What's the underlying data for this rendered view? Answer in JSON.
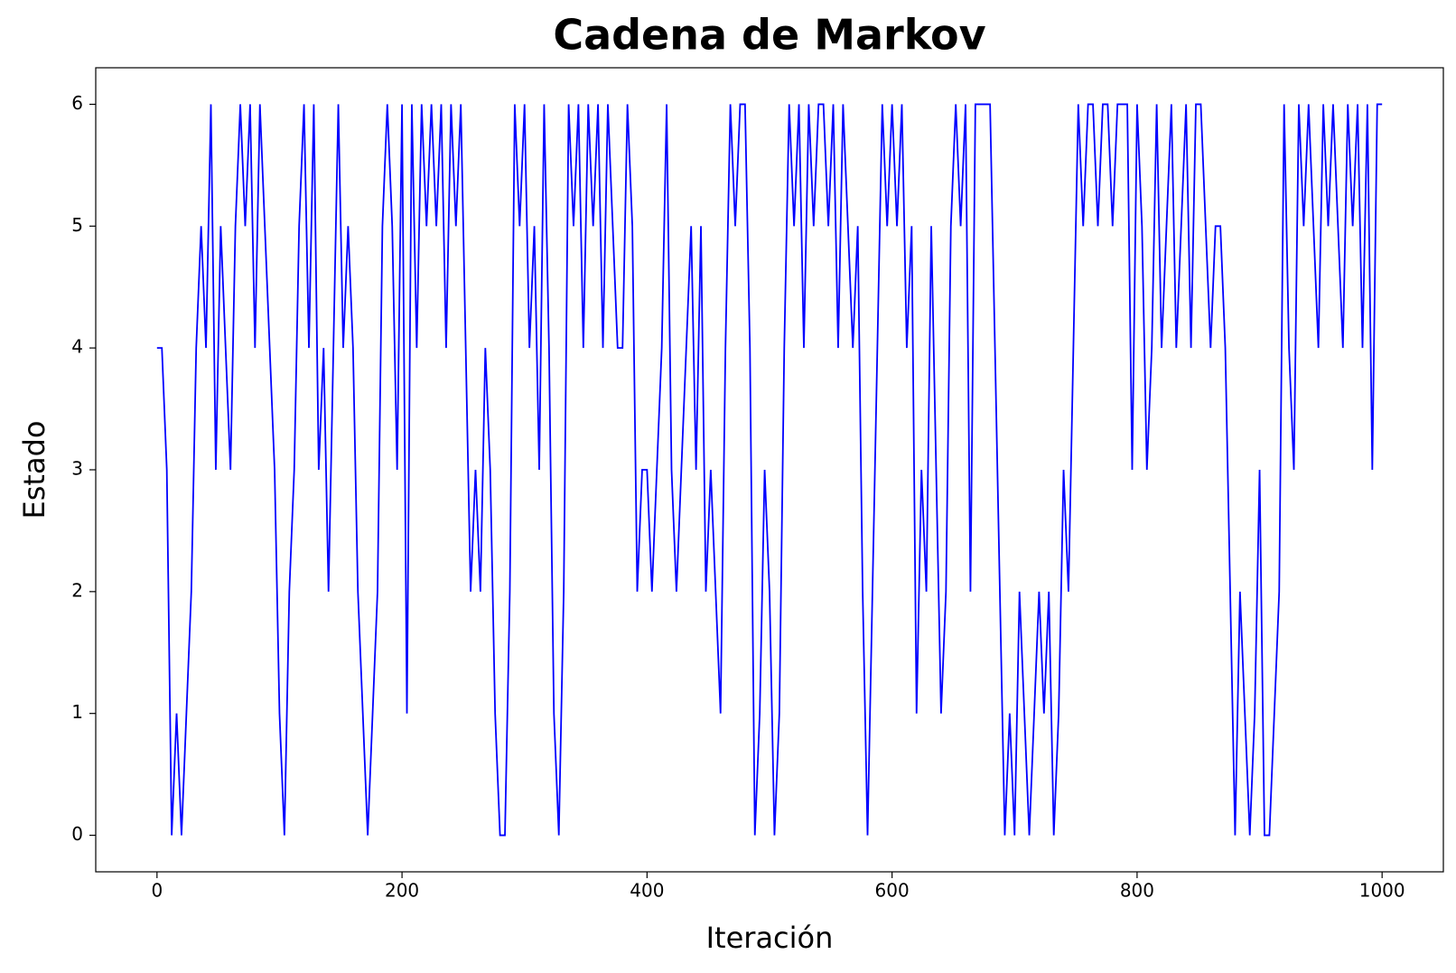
{
  "chart_data": {
    "type": "line",
    "title": "Cadena de Markov",
    "x_label": "Iteración",
    "y_label": "Estado",
    "color": "#0000ff",
    "grid": false,
    "xlim": [
      -50,
      1050
    ],
    "ylim": [
      -0.3,
      6.3
    ],
    "xticks": [
      0,
      200,
      400,
      600,
      800,
      1000
    ],
    "yticks": [
      0,
      1,
      2,
      3,
      4,
      5,
      6
    ],
    "x": [
      0,
      4,
      8,
      12,
      16,
      20,
      24,
      28,
      32,
      36,
      40,
      44,
      48,
      52,
      56,
      60,
      64,
      68,
      72,
      76,
      80,
      84,
      88,
      92,
      96,
      100,
      104,
      108,
      112,
      116,
      120,
      124,
      128,
      132,
      136,
      140,
      144,
      148,
      152,
      156,
      160,
      164,
      168,
      172,
      176,
      180,
      184,
      188,
      192,
      196,
      200,
      204,
      208,
      212,
      216,
      220,
      224,
      228,
      232,
      236,
      240,
      244,
      248,
      252,
      256,
      260,
      264,
      268,
      272,
      276,
      280,
      284,
      288,
      292,
      296,
      300,
      304,
      308,
      312,
      316,
      320,
      324,
      328,
      332,
      336,
      340,
      344,
      348,
      352,
      356,
      360,
      364,
      368,
      372,
      376,
      380,
      384,
      388,
      392,
      396,
      400,
      404,
      408,
      412,
      416,
      420,
      424,
      428,
      432,
      436,
      440,
      444,
      448,
      452,
      456,
      460,
      464,
      468,
      472,
      476,
      480,
      484,
      488,
      492,
      496,
      500,
      504,
      508,
      512,
      516,
      520,
      524,
      528,
      532,
      536,
      540,
      544,
      548,
      552,
      556,
      560,
      564,
      568,
      572,
      576,
      580,
      584,
      588,
      592,
      596,
      600,
      604,
      608,
      612,
      616,
      620,
      624,
      628,
      632,
      636,
      640,
      644,
      648,
      652,
      656,
      660,
      664,
      668,
      672,
      676,
      680,
      684,
      688,
      692,
      696,
      700,
      704,
      708,
      712,
      716,
      720,
      724,
      728,
      732,
      736,
      740,
      744,
      748,
      752,
      756,
      760,
      764,
      768,
      772,
      776,
      780,
      784,
      788,
      792,
      796,
      800,
      804,
      808,
      812,
      816,
      820,
      824,
      828,
      832,
      836,
      840,
      844,
      848,
      852,
      856,
      860,
      864,
      868,
      872,
      876,
      880,
      884,
      888,
      892,
      896,
      900,
      904,
      908,
      912,
      916,
      920,
      924,
      928,
      932,
      936,
      940,
      944,
      948,
      952,
      956,
      960,
      964,
      968,
      972,
      976,
      980,
      984,
      988,
      992,
      996,
      1000
    ],
    "values": [
      4,
      4,
      3,
      0,
      1,
      0,
      1,
      2,
      4,
      5,
      4,
      6,
      3,
      5,
      4,
      3,
      5,
      6,
      5,
      6,
      4,
      6,
      5,
      4,
      3,
      1,
      0,
      2,
      3,
      5,
      6,
      4,
      6,
      3,
      4,
      2,
      4,
      6,
      4,
      5,
      4,
      2,
      1,
      0,
      1,
      2,
      5,
      6,
      5,
      3,
      6,
      1,
      6,
      4,
      6,
      5,
      6,
      5,
      6,
      4,
      6,
      5,
      6,
      4,
      2,
      3,
      2,
      4,
      3,
      1,
      0,
      0,
      2,
      6,
      5,
      6,
      4,
      5,
      3,
      6,
      4,
      1,
      0,
      2,
      6,
      5,
      6,
      4,
      6,
      5,
      6,
      4,
      6,
      5,
      4,
      4,
      6,
      5,
      2,
      3,
      3,
      2,
      3,
      4,
      6,
      3,
      2,
      3,
      4,
      5,
      3,
      5,
      2,
      3,
      2,
      1,
      4,
      6,
      5,
      6,
      6,
      4,
      0,
      1,
      3,
      2,
      0,
      1,
      4,
      6,
      5,
      6,
      4,
      6,
      5,
      6,
      6,
      5,
      6,
      4,
      6,
      5,
      4,
      5,
      2,
      0,
      2,
      4,
      6,
      5,
      6,
      5,
      6,
      4,
      5,
      1,
      3,
      2,
      5,
      3,
      1,
      2,
      5,
      6,
      5,
      6,
      2,
      6,
      6,
      6,
      6,
      4,
      2,
      0,
      1,
      0,
      2,
      1,
      0,
      1,
      2,
      1,
      2,
      0,
      1,
      3,
      2,
      4,
      6,
      5,
      6,
      6,
      5,
      6,
      6,
      5,
      6,
      6,
      6,
      3,
      6,
      5,
      3,
      4,
      6,
      4,
      5,
      6,
      4,
      5,
      6,
      4,
      6,
      6,
      5,
      4,
      5,
      5,
      4,
      2,
      0,
      2,
      1,
      0,
      1,
      3,
      0,
      0,
      1,
      2,
      6,
      4,
      3,
      6,
      5,
      6,
      5,
      4,
      6,
      5,
      6,
      5,
      4,
      6,
      5,
      6,
      4,
      6,
      3,
      6,
      6
    ]
  }
}
